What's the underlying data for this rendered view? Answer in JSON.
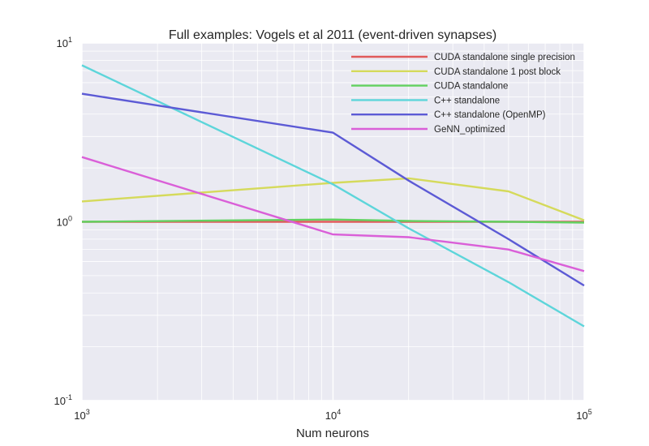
{
  "chart_data": {
    "type": "line",
    "title": "Full examples: Vogels et al 2011 (event-driven synapses)",
    "xlabel": "Num neurons",
    "ylabel": "",
    "xscale": "log",
    "yscale": "log",
    "xlim": [
      1000,
      100000
    ],
    "ylim": [
      0.1,
      10
    ],
    "grid": true,
    "legend_position": "top-right",
    "x_ticks": [
      {
        "base": "10",
        "exp": "3",
        "value": 1000
      },
      {
        "base": "10",
        "exp": "4",
        "value": 10000
      },
      {
        "base": "10",
        "exp": "5",
        "value": 100000
      }
    ],
    "y_ticks": [
      {
        "base": "10",
        "exp": "-1",
        "value": 0.1
      },
      {
        "base": "10",
        "exp": "0",
        "value": 1
      },
      {
        "base": "10",
        "exp": "1",
        "value": 10
      }
    ],
    "series": [
      {
        "name": "CUDA standalone single precision",
        "color": "#e05a5a",
        "x": [
          1000,
          10000,
          20000,
          50000,
          100000
        ],
        "y": [
          1.0,
          1.0,
          1.0,
          1.0,
          1.0
        ]
      },
      {
        "name": "CUDA standalone 1 post block",
        "color": "#d5da5b",
        "x": [
          1000,
          10000,
          20000,
          50000,
          100000
        ],
        "y": [
          1.3,
          1.65,
          1.75,
          1.48,
          1.02
        ]
      },
      {
        "name": "CUDA standalone",
        "color": "#62d160",
        "x": [
          1000,
          10000,
          20000,
          50000,
          100000
        ],
        "y": [
          1.0,
          1.03,
          1.01,
          1.0,
          0.99
        ]
      },
      {
        "name": "C++ standalone",
        "color": "#5dd5da",
        "x": [
          1000,
          10000,
          20000,
          50000,
          100000
        ],
        "y": [
          7.5,
          1.62,
          0.92,
          0.46,
          0.26
        ]
      },
      {
        "name": "C++ standalone (OpenMP)",
        "color": "#5c5ad5",
        "x": [
          1000,
          10000,
          20000,
          50000,
          100000
        ],
        "y": [
          5.2,
          3.15,
          1.7,
          0.8,
          0.44
        ]
      },
      {
        "name": "GeNN_optimized",
        "color": "#da5fd8",
        "x": [
          1000,
          10000,
          20000,
          50000,
          100000
        ],
        "y": [
          2.3,
          0.85,
          0.82,
          0.7,
          0.53
        ]
      }
    ]
  }
}
